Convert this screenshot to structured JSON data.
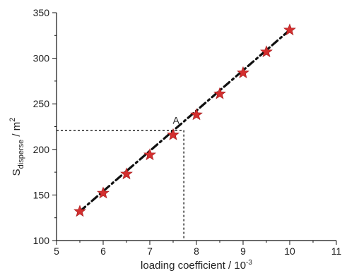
{
  "chart_data": {
    "type": "scatter",
    "xlabel": {
      "main": "loading coefficient / 10",
      "sup": "-3"
    },
    "ylabel": {
      "main": "S",
      "sub": "disperse",
      "rest": " / m",
      "sup": "2"
    },
    "xlim": [
      5,
      11
    ],
    "ylim": [
      100,
      350
    ],
    "xticks": [
      5,
      6,
      7,
      8,
      9,
      10,
      11
    ],
    "yticks": [
      100,
      150,
      200,
      250,
      300,
      350
    ],
    "grid": false,
    "series": [
      {
        "marker": "star",
        "color": "#d32f2f",
        "x": [
          5.5,
          6.0,
          6.5,
          7.0,
          7.5,
          8.0,
          8.5,
          9.0,
          9.5,
          10.0
        ],
        "y": [
          132,
          152,
          173,
          194,
          216,
          238,
          261,
          284,
          307,
          331
        ]
      }
    ],
    "fit_line": {
      "style": "dash-dot",
      "color": "#111111",
      "x": [
        5.5,
        10.0
      ],
      "y": [
        132,
        331
      ]
    },
    "annotations": [
      {
        "label": "A",
        "x": 7.73,
        "y": 221,
        "guides": "dashed"
      }
    ]
  }
}
